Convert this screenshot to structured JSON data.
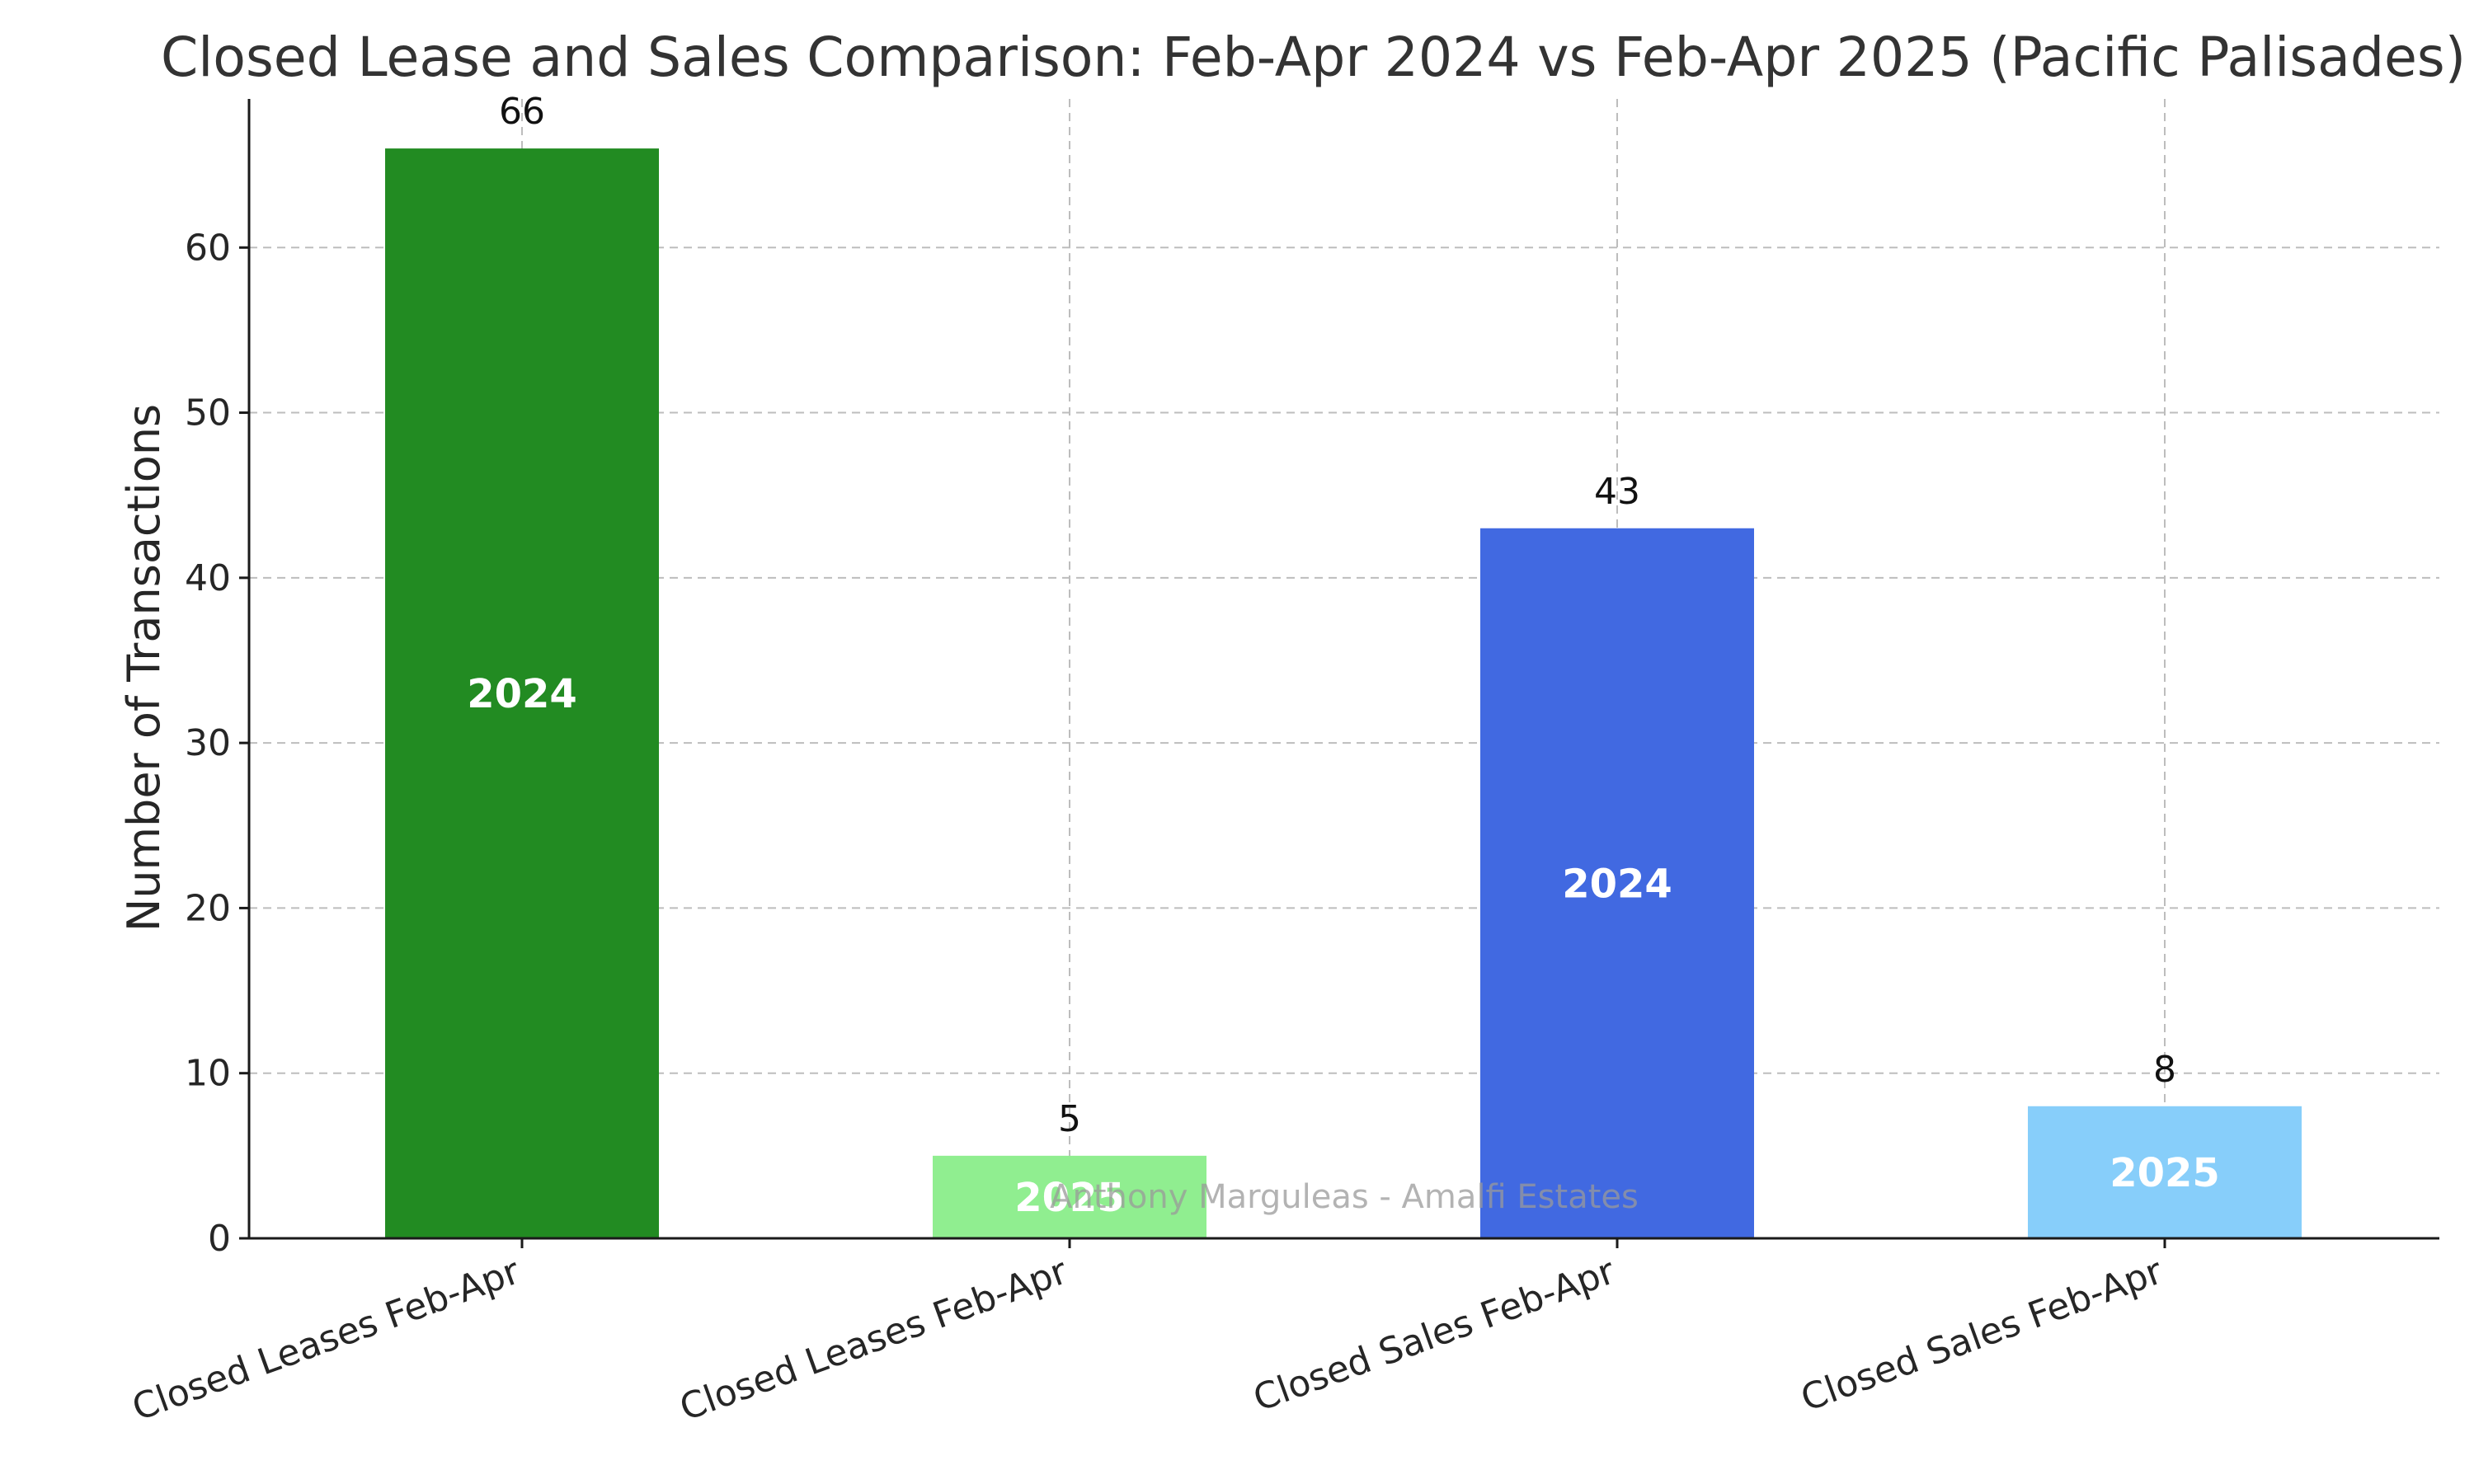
{
  "chart_data": {
    "type": "bar",
    "title": "Closed Lease and Sales Comparison: Feb-Apr 2024 vs Feb-Apr 2025 (Pacific Palisades)",
    "xlabel": "",
    "ylabel": "Number of Transactions",
    "categories": [
      "Closed Leases Feb-Apr",
      "Closed Leases Feb-Apr",
      "Closed Sales Feb-Apr",
      "Closed Sales Feb-Apr"
    ],
    "values": [
      66,
      5,
      43,
      8
    ],
    "value_labels": [
      "66",
      "5",
      "43",
      "8"
    ],
    "bar_year_labels": [
      "2024",
      "2025",
      "2024",
      "2025"
    ],
    "colors": [
      "#228B22",
      "#90EE90",
      "#4169E1",
      "#87CEFA"
    ],
    "ylim": [
      0,
      69
    ],
    "yticks": [
      0,
      10,
      20,
      30,
      40,
      50,
      60
    ],
    "ytick_labels": [
      "0",
      "10",
      "20",
      "30",
      "40",
      "50",
      "60"
    ],
    "grid": true,
    "legend": "none",
    "watermark": "Anthony Marguleas - Amalfi Estates"
  }
}
